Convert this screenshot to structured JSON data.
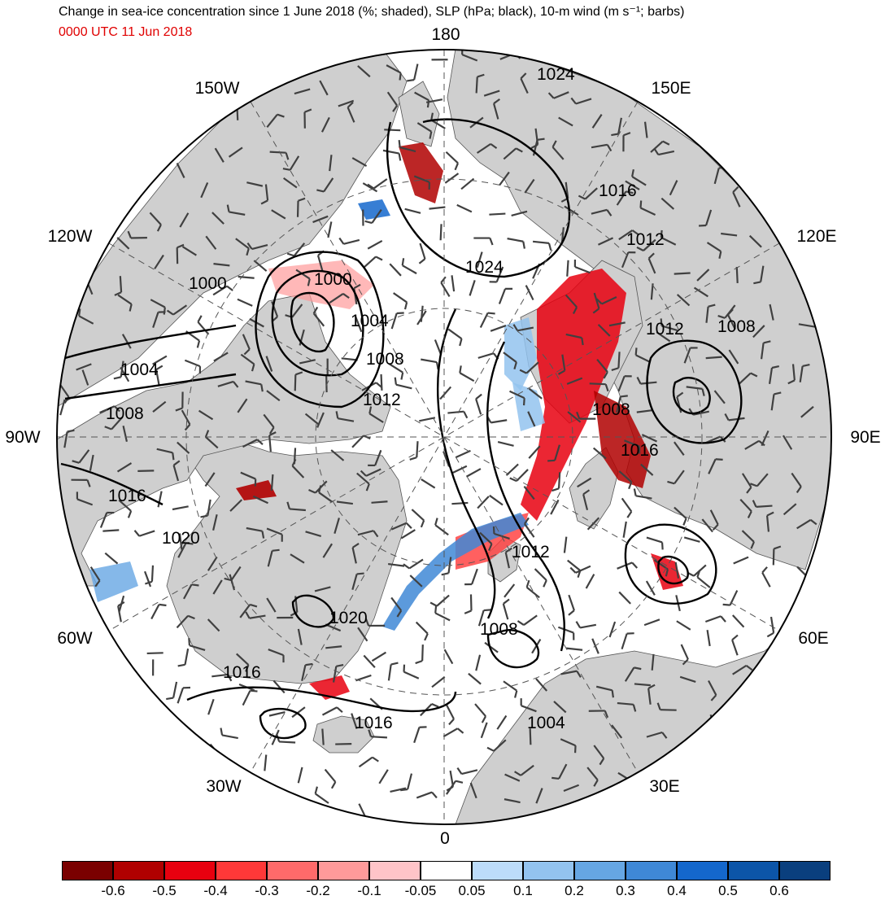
{
  "header": {
    "title": "Change in sea-ice concentration since 1 June 2018 (%; shaded), SLP (hPa; black), 10-m wind (m s⁻¹; barbs)",
    "valid_time": "0000 UTC 11 Jun 2018"
  },
  "longitude_labels": {
    "n180": "180",
    "n150e": "150E",
    "n120e": "120E",
    "n90e": "90E",
    "n60e": "60E",
    "n30e": "30E",
    "n0": "0",
    "n30w": "30W",
    "n60w": "60W",
    "n90w": "90W",
    "n120w": "120W",
    "n150w": "150W"
  },
  "isobar_labels": [
    "1024",
    "1024",
    "1016",
    "1012",
    "1000",
    "1000",
    "1004",
    "1008",
    "1012",
    "1012",
    "1008",
    "1004",
    "1008",
    "1008",
    "1016",
    "1016",
    "1020",
    "1012",
    "1020",
    "1008",
    "1016",
    "1016",
    "1004"
  ],
  "colorbar": {
    "labels": [
      "-0.6",
      "-0.5",
      "-0.4",
      "-0.3",
      "-0.2",
      "-0.1",
      "-0.05",
      "0.05",
      "0.1",
      "0.2",
      "0.3",
      "0.4",
      "0.5",
      "0.6"
    ],
    "colors": [
      "#7a0000",
      "#b00000",
      "#e8000f",
      "#ff3838",
      "#ff6a6a",
      "#ff9a9a",
      "#ffc4c8",
      "#ffffff",
      "#bcdcfa",
      "#93c3ef",
      "#66a6e3",
      "#3f88d6",
      "#1467cc",
      "#0c55a8",
      "#0a3f7e"
    ]
  },
  "colors": {
    "land": "#cfcfcf",
    "ocean": "#ffffff",
    "isobar": "#000000",
    "barb": "#404040",
    "time_text": "#e00000"
  }
}
